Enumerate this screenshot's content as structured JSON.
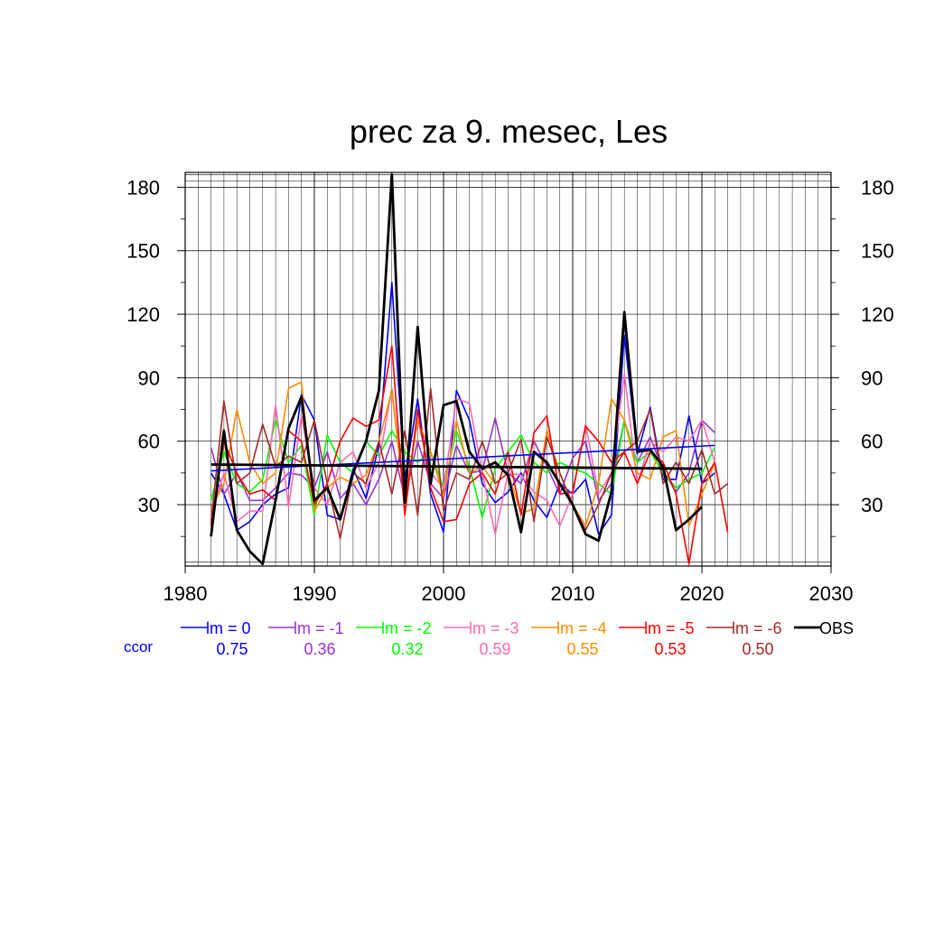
{
  "chart_data": {
    "type": "line",
    "title": "prec za 9. mesec, Les",
    "xlim": [
      1980,
      2030
    ],
    "ylim": [
      1,
      187
    ],
    "x_ticks": [
      "1980",
      "1990",
      "2000",
      "2010",
      "2020",
      "2030"
    ],
    "y_ticks": [
      "30",
      "60",
      "90",
      "120",
      "150",
      "180"
    ],
    "grid": true,
    "legend_position": "bottom",
    "ccor_label": "ccor",
    "ccor_color": "#0000ff",
    "series": [
      {
        "name": "lm = 0",
        "ccor": "0.75",
        "color": "#0000ff",
        "width": 1.6,
        "x": [
          1982,
          1983,
          1984,
          1985,
          1986,
          1987,
          1988,
          1989,
          1990,
          1991,
          1992,
          1993,
          1994,
          1995,
          1996,
          1997,
          1998,
          1999,
          2000,
          2001,
          2002,
          2003,
          2004,
          2005,
          2006,
          2007,
          2008,
          2009,
          2010,
          2011,
          2012,
          2013,
          2014,
          2015,
          2016,
          2017,
          2018,
          2019,
          2020,
          2021
        ],
        "y": [
          45,
          35,
          18,
          22,
          30,
          35,
          38,
          82,
          70,
          25,
          23,
          47,
          33,
          58,
          135,
          42,
          80,
          35,
          17,
          84,
          70,
          40,
          31,
          36,
          45,
          32,
          24,
          40,
          35,
          42,
          16,
          25,
          110,
          54,
          76,
          42,
          42,
          72,
          40,
          45
        ]
      },
      {
        "name": "lm = -1",
        "ccor": "0.36",
        "color": "#9a32cd",
        "width": 1.6,
        "x": [
          1982,
          1983,
          1984,
          1985,
          1986,
          1987,
          1988,
          1989,
          1990,
          1991,
          1992,
          1993,
          1994,
          1995,
          1996,
          1997,
          1998,
          1999,
          2000,
          2001,
          2002,
          2003,
          2004,
          2005,
          2006,
          2007,
          2008,
          2009,
          2010,
          2011,
          2012,
          2013,
          2014,
          2015,
          2016,
          2017,
          2018,
          2019,
          2020,
          2021
        ],
        "y": [
          57,
          35,
          45,
          32,
          32,
          38,
          45,
          44,
          38,
          55,
          33,
          40,
          30,
          42,
          60,
          33,
          60,
          40,
          33,
          58,
          45,
          46,
          71,
          45,
          40,
          60,
          48,
          35,
          52,
          60,
          32,
          40,
          70,
          50,
          62,
          46,
          36,
          45,
          70,
          64
        ]
      },
      {
        "name": "lm = -2",
        "ccor": "0.32",
        "color": "#00ff00",
        "width": 1.6,
        "x": [
          1982,
          1983,
          1984,
          1985,
          1986,
          1987,
          1988,
          1989,
          1990,
          1991,
          1992,
          1993,
          1994,
          1995,
          1996,
          1997,
          1998,
          1999,
          2000,
          2001,
          2002,
          2003,
          2004,
          2005,
          2006,
          2007,
          2008,
          2009,
          2010,
          2011,
          2012,
          2013,
          2014,
          2015,
          2016,
          2017,
          2018,
          2019,
          2020,
          2021
        ],
        "y": [
          32,
          55,
          40,
          36,
          42,
          70,
          50,
          58,
          25,
          63,
          50,
          45,
          60,
          53,
          65,
          55,
          50,
          55,
          38,
          65,
          48,
          24,
          47,
          55,
          63,
          50,
          45,
          50,
          47,
          45,
          40,
          35,
          70,
          50,
          55,
          45,
          38,
          42,
          45,
          57
        ]
      },
      {
        "name": "lm = -3",
        "ccor": "0.59",
        "color": "#ff69b4",
        "width": 1.6,
        "x": [
          1982,
          1983,
          1984,
          1985,
          1986,
          1987,
          1988,
          1989,
          1990,
          1991,
          1992,
          1993,
          1994,
          1995,
          1996,
          1997,
          1998,
          1999,
          2000,
          2001,
          2002,
          2003,
          2004,
          2005,
          2006,
          2007,
          2008,
          2009,
          2010,
          2011,
          2012,
          2013,
          2014,
          2015,
          2016,
          2017,
          2018,
          2019,
          2020,
          2021
        ],
        "y": [
          25,
          45,
          22,
          27,
          27,
          77,
          29,
          72,
          38,
          30,
          50,
          55,
          38,
          50,
          85,
          32,
          70,
          45,
          38,
          80,
          78,
          45,
          16,
          45,
          44,
          36,
          32,
          20,
          35,
          68,
          35,
          45,
          92,
          40,
          60,
          55,
          62,
          60,
          70,
          50
        ]
      },
      {
        "name": "lm = -4",
        "ccor": "0.55",
        "color": "#ff8c00",
        "width": 1.6,
        "x": [
          1982,
          1983,
          1984,
          1985,
          1986,
          1987,
          1988,
          1989,
          1990,
          1991,
          1992,
          1993,
          1994,
          1995,
          1996,
          1997,
          1998,
          1999,
          2000,
          2001,
          2002,
          2003,
          2004,
          2005,
          2006,
          2007,
          2008,
          2009,
          2010,
          2011,
          2012,
          2013,
          2014,
          2015,
          2016,
          2017,
          2018,
          2019,
          2020,
          2021
        ],
        "y": [
          28,
          40,
          75,
          50,
          40,
          45,
          85,
          88,
          27,
          38,
          43,
          40,
          44,
          60,
          84,
          30,
          70,
          55,
          34,
          70,
          45,
          48,
          40,
          45,
          26,
          28,
          65,
          45,
          30,
          20,
          40,
          80,
          70,
          45,
          42,
          62,
          65,
          20,
          35,
          50
        ]
      },
      {
        "name": "lm = -5",
        "ccor": "0.53",
        "color": "#ff0000",
        "width": 1.6,
        "x": [
          1982,
          1983,
          1984,
          1985,
          1986,
          1987,
          1988,
          1989,
          1990,
          1991,
          1992,
          1993,
          1994,
          1995,
          1996,
          1997,
          1998,
          1999,
          2000,
          2001,
          2002,
          2003,
          2004,
          2005,
          2006,
          2007,
          2008,
          2009,
          2010,
          2011,
          2012,
          2013,
          2014,
          2015,
          2016,
          2017,
          2018,
          2019,
          2020,
          2021,
          2022
        ],
        "y": [
          20,
          60,
          45,
          35,
          37,
          32,
          65,
          60,
          30,
          40,
          60,
          71,
          67,
          70,
          105,
          25,
          75,
          38,
          22,
          23,
          40,
          45,
          35,
          55,
          25,
          64,
          72,
          35,
          36,
          67,
          60,
          50,
          55,
          40,
          55,
          50,
          35,
          2,
          40,
          50,
          17
        ]
      },
      {
        "name": "lm = -6",
        "ccor": "0.50",
        "color": "#a52a2a",
        "width": 1.6,
        "x": [
          1982,
          1983,
          1984,
          1985,
          1986,
          1987,
          1988,
          1989,
          1990,
          1991,
          1992,
          1993,
          1994,
          1995,
          1996,
          1997,
          1998,
          1999,
          2000,
          2001,
          2002,
          2003,
          2004,
          2005,
          2006,
          2007,
          2008,
          2009,
          2010,
          2011,
          2012,
          2013,
          2014,
          2015,
          2016,
          2017,
          2018,
          2019,
          2020,
          2021,
          2022
        ],
        "y": [
          22,
          79,
          40,
          45,
          68,
          48,
          53,
          50,
          70,
          40,
          14,
          45,
          40,
          60,
          35,
          65,
          25,
          85,
          27,
          45,
          42,
          60,
          40,
          45,
          61,
          22,
          62,
          45,
          30,
          18,
          30,
          45,
          55,
          60,
          75,
          40,
          50,
          40,
          56,
          35,
          40
        ]
      },
      {
        "name": "OBS",
        "ccor": "",
        "color": "#000000",
        "width": 2.8,
        "x": [
          1982,
          1983,
          1984,
          1985,
          1986,
          1987,
          1988,
          1989,
          1990,
          1991,
          1992,
          1993,
          1994,
          1995,
          1996,
          1997,
          1998,
          1999,
          2000,
          2001,
          2002,
          2003,
          2004,
          2005,
          2006,
          2007,
          2008,
          2009,
          2010,
          2011,
          2012,
          2013,
          2014,
          2015,
          2016,
          2017,
          2018,
          2019,
          2020
        ],
        "y": [
          15,
          65,
          18,
          8,
          2,
          32,
          66,
          81,
          32,
          38,
          23,
          45,
          60,
          84,
          186,
          31,
          114,
          40,
          77,
          79,
          55,
          47,
          50,
          44,
          17,
          55,
          50,
          40,
          30,
          16,
          13,
          36,
          121,
          55,
          56,
          48,
          18,
          23,
          29
        ]
      }
    ],
    "trend_lines": [
      {
        "series": "lm = 0",
        "color": "#0000ff",
        "width": 1.6,
        "x": [
          1982,
          2021
        ],
        "y": [
          46,
          58
        ]
      },
      {
        "series": "OBS",
        "color": "#000000",
        "width": 2.8,
        "x": [
          1982,
          2020
        ],
        "y": [
          49,
          47
        ]
      }
    ]
  }
}
